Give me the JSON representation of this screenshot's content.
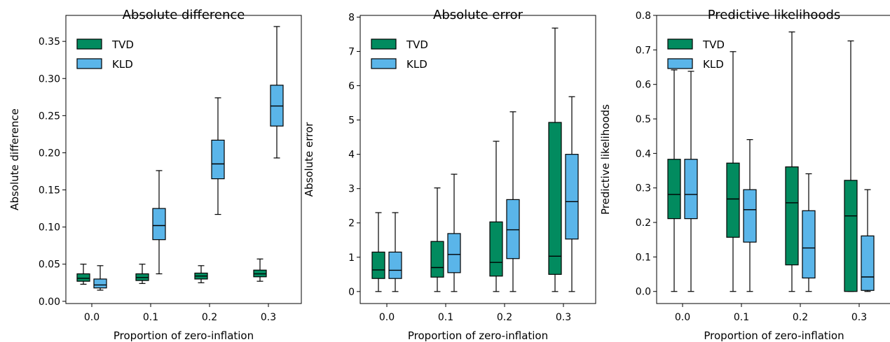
{
  "colors": {
    "TVD": "#028b5f",
    "KLD": "#5ab5e9",
    "edge": "#000000"
  },
  "chart_data": [
    {
      "type": "box",
      "title": "Absolute difference",
      "xlabel": "Proportion of zero-inflation",
      "ylabel": "Absolute difference",
      "categories": [
        "0.0",
        "0.1",
        "0.2",
        "0.3"
      ],
      "ylim": [
        -0.003,
        0.385
      ],
      "yticks": [
        0.0,
        0.05,
        0.1,
        0.15,
        0.2,
        0.25,
        0.3,
        0.35
      ],
      "ytick_labels": [
        "0.00",
        "0.05",
        "0.10",
        "0.15",
        "0.20",
        "0.25",
        "0.30",
        "0.35"
      ],
      "legend": {
        "position": "upper-left",
        "entries": [
          "TVD",
          "KLD"
        ]
      },
      "series": [
        {
          "name": "TVD",
          "boxes": [
            {
              "whislo": 0.023,
              "q1": 0.027,
              "med": 0.031,
              "q3": 0.037,
              "whishi": 0.05
            },
            {
              "whislo": 0.024,
              "q1": 0.028,
              "med": 0.032,
              "q3": 0.037,
              "whishi": 0.05
            },
            {
              "whislo": 0.025,
              "q1": 0.03,
              "med": 0.034,
              "q3": 0.038,
              "whishi": 0.048
            },
            {
              "whislo": 0.027,
              "q1": 0.033,
              "med": 0.037,
              "q3": 0.042,
              "whishi": 0.057
            }
          ]
        },
        {
          "name": "KLD",
          "boxes": [
            {
              "whislo": 0.015,
              "q1": 0.018,
              "med": 0.022,
              "q3": 0.03,
              "whishi": 0.048
            },
            {
              "whislo": 0.037,
              "q1": 0.083,
              "med": 0.102,
              "q3": 0.125,
              "whishi": 0.176
            },
            {
              "whislo": 0.117,
              "q1": 0.165,
              "med": 0.185,
              "q3": 0.217,
              "whishi": 0.274
            },
            {
              "whislo": 0.193,
              "q1": 0.236,
              "med": 0.263,
              "q3": 0.291,
              "whishi": 0.37
            }
          ]
        }
      ]
    },
    {
      "type": "box",
      "title": "Absolute error",
      "xlabel": "Proportion of zero-inflation",
      "ylabel": "Absolute error",
      "categories": [
        "0.0",
        "0.1",
        "0.2",
        "0.3"
      ],
      "ylim": [
        -0.35,
        8.05
      ],
      "yticks": [
        0,
        1,
        2,
        3,
        4,
        5,
        6,
        7,
        8
      ],
      "ytick_labels": [
        "0",
        "1",
        "2",
        "3",
        "4",
        "5",
        "6",
        "7",
        "8"
      ],
      "legend": {
        "position": "upper-left",
        "entries": [
          "TVD",
          "KLD"
        ]
      },
      "series": [
        {
          "name": "TVD",
          "boxes": [
            {
              "whislo": 0.0,
              "q1": 0.38,
              "med": 0.63,
              "q3": 1.15,
              "whishi": 2.3
            },
            {
              "whislo": 0.0,
              "q1": 0.42,
              "med": 0.7,
              "q3": 1.46,
              "whishi": 3.02
            },
            {
              "whislo": 0.0,
              "q1": 0.45,
              "med": 0.85,
              "q3": 2.03,
              "whishi": 4.38
            },
            {
              "whislo": 0.0,
              "q1": 0.5,
              "med": 1.03,
              "q3": 4.93,
              "whishi": 7.68
            }
          ]
        },
        {
          "name": "KLD",
          "boxes": [
            {
              "whislo": 0.0,
              "q1": 0.38,
              "med": 0.62,
              "q3": 1.15,
              "whishi": 2.3
            },
            {
              "whislo": 0.0,
              "q1": 0.55,
              "med": 1.08,
              "q3": 1.69,
              "whishi": 3.42
            },
            {
              "whislo": 0.0,
              "q1": 0.96,
              "med": 1.8,
              "q3": 2.68,
              "whishi": 5.24
            },
            {
              "whislo": 0.0,
              "q1": 1.53,
              "med": 2.62,
              "q3": 4.0,
              "whishi": 5.68
            }
          ]
        }
      ]
    },
    {
      "type": "box",
      "title": "Predictive likelihoods",
      "xlabel": "Proportion of zero-inflation",
      "ylabel": "Predictive likelihoods",
      "categories": [
        "0.0",
        "0.1",
        "0.2",
        "0.3"
      ],
      "ylim": [
        -0.035,
        0.8
      ],
      "yticks": [
        0.0,
        0.1,
        0.2,
        0.3,
        0.4,
        0.5,
        0.6,
        0.7,
        0.8
      ],
      "ytick_labels": [
        "0.0",
        "0.1",
        "0.2",
        "0.3",
        "0.4",
        "0.5",
        "0.6",
        "0.7",
        "0.8"
      ],
      "legend": {
        "position": "upper-left",
        "entries": [
          "TVD",
          "KLD"
        ]
      },
      "series": [
        {
          "name": "TVD",
          "boxes": [
            {
              "whislo": 0.0,
              "q1": 0.211,
              "med": 0.281,
              "q3": 0.383,
              "whishi": 0.642
            },
            {
              "whislo": 0.0,
              "q1": 0.157,
              "med": 0.268,
              "q3": 0.372,
              "whishi": 0.695
            },
            {
              "whislo": 0.0,
              "q1": 0.077,
              "med": 0.257,
              "q3": 0.361,
              "whishi": 0.752
            },
            {
              "whislo": 0.0,
              "q1": 0.0,
              "med": 0.219,
              "q3": 0.322,
              "whishi": 0.726
            }
          ]
        },
        {
          "name": "KLD",
          "boxes": [
            {
              "whislo": 0.0,
              "q1": 0.211,
              "med": 0.281,
              "q3": 0.383,
              "whishi": 0.638
            },
            {
              "whislo": 0.0,
              "q1": 0.143,
              "med": 0.237,
              "q3": 0.295,
              "whishi": 0.44
            },
            {
              "whislo": 0.0,
              "q1": 0.039,
              "med": 0.126,
              "q3": 0.234,
              "whishi": 0.341
            },
            {
              "whislo": 0.0,
              "q1": 0.003,
              "med": 0.042,
              "q3": 0.161,
              "whishi": 0.295
            }
          ]
        }
      ]
    }
  ]
}
